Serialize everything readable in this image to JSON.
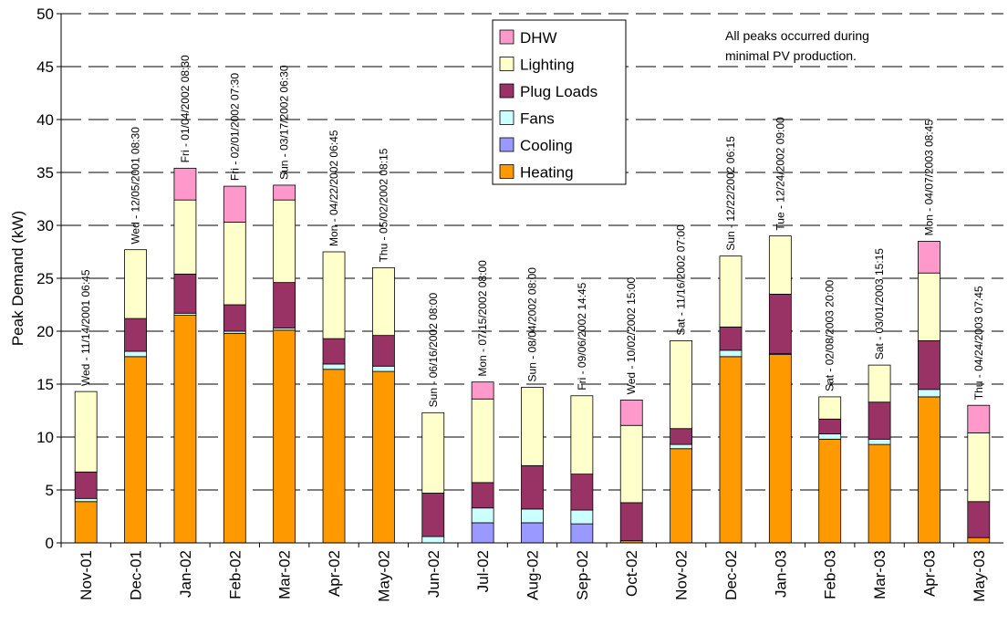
{
  "chart_data": {
    "type": "bar",
    "stacked": true,
    "ylabel": "Peak Demand (kW)",
    "xlabel": "",
    "ylim": [
      0,
      50
    ],
    "yticks": [
      0,
      5,
      10,
      15,
      20,
      25,
      30,
      35,
      40,
      45,
      50
    ],
    "grid": "horizontal dashed",
    "legend_position": "top-center",
    "categories": [
      "Nov-01",
      "Dec-01",
      "Jan-02",
      "Feb-02",
      "Mar-02",
      "Apr-02",
      "May-02",
      "Jun-02",
      "Jul-02",
      "Aug-02",
      "Sep-02",
      "Oct-02",
      "Nov-02",
      "Dec-02",
      "Jan-03",
      "Feb-03",
      "Mar-03",
      "Apr-03",
      "May-03"
    ],
    "peak_labels": [
      "Wed - 11/14/2001 06:45",
      "Wed - 12/05/2001 08:30",
      "Fri - 01/04/2002 08:30",
      "Fri - 02/01/2002 07:30",
      "Sun - 03/17/2002 06:30",
      "Mon - 04/22/2002 06:45",
      "Thu - 05/02/2002 08:15",
      "Sun - 06/16/2002 08:00",
      "Mon - 07/15/2002 08:00",
      "Sun - 08/04/2002 08:00",
      "Fri - 09/06/2002 14:45",
      "Wed - 10/02/2002 15:00",
      "Sat - 11/16/2002 07:00",
      "Sun - 12/22/2002 06:15",
      "Tue - 12/24/2002 09:00",
      "Sat - 02/08/2003 20:00",
      "Sat - 03/01/2003 15:15",
      "Mon - 04/07/2003 08:45",
      "Thu - 04/24/2003 07:45"
    ],
    "series": [
      {
        "name": "Heating",
        "color": "#ff9900",
        "values": [
          3.9,
          17.6,
          21.5,
          19.8,
          20.1,
          16.4,
          16.2,
          0.0,
          0.0,
          0.0,
          0.0,
          0.2,
          8.9,
          17.6,
          17.8,
          9.8,
          9.3,
          13.8,
          0.5
        ]
      },
      {
        "name": "Cooling",
        "color": "#9999ff",
        "values": [
          0.0,
          0.0,
          0.0,
          0.0,
          0.0,
          0.0,
          0.0,
          0.0,
          1.9,
          1.9,
          1.8,
          0.0,
          0.0,
          0.0,
          0.0,
          0.0,
          0.0,
          0.0,
          0.0
        ]
      },
      {
        "name": "Fans",
        "color": "#ccffff",
        "values": [
          0.3,
          0.5,
          0.2,
          0.2,
          0.2,
          0.5,
          0.5,
          0.6,
          1.4,
          1.3,
          1.3,
          0.0,
          0.4,
          0.6,
          0.1,
          0.5,
          0.5,
          0.7,
          0.0
        ]
      },
      {
        "name": "Plug Loads",
        "color": "#993366",
        "values": [
          2.5,
          3.1,
          3.7,
          2.5,
          4.3,
          2.4,
          2.9,
          4.1,
          2.4,
          4.1,
          3.4,
          3.6,
          1.5,
          2.2,
          5.6,
          1.4,
          3.5,
          4.6,
          3.4
        ]
      },
      {
        "name": "Lighting",
        "color": "#ffffcc",
        "values": [
          7.6,
          6.5,
          7.0,
          7.8,
          7.8,
          8.2,
          6.4,
          7.6,
          7.9,
          7.4,
          7.4,
          7.3,
          8.3,
          6.7,
          5.5,
          2.1,
          3.5,
          6.4,
          6.5
        ]
      },
      {
        "name": "DHW",
        "color": "#ff99cc",
        "values": [
          0.0,
          0.0,
          3.0,
          3.4,
          1.4,
          0.0,
          0.0,
          0.0,
          1.6,
          0.0,
          0.0,
          2.4,
          0.0,
          0.0,
          0.0,
          0.0,
          0.0,
          3.0,
          2.6
        ]
      }
    ],
    "legend_order": [
      "DHW",
      "Lighting",
      "Plug Loads",
      "Fans",
      "Cooling",
      "Heating"
    ],
    "annotation": "All peaks occurred during minimal PV production.",
    "annotation_lines": [
      "All peaks occurred during",
      "minimal PV production."
    ]
  }
}
